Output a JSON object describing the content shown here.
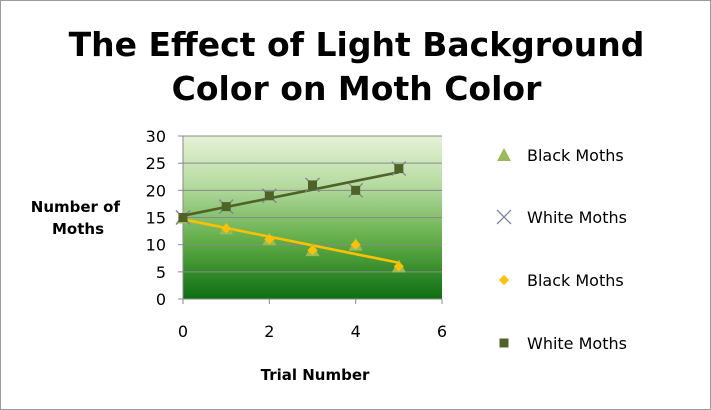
{
  "chart_data": {
    "type": "scatter",
    "title": "The Effect of Light Background Color on Moth Color",
    "title_lines": [
      "The Effect of Light Background",
      "Color on Moth Color"
    ],
    "xlabel": "Trial Number",
    "ylabel": "Number of Moths",
    "ylabel_lines": [
      "Number of",
      "Moths"
    ],
    "xlim": [
      0,
      6
    ],
    "ylim": [
      0,
      30
    ],
    "x_ticks": [
      0,
      2,
      4,
      6
    ],
    "y_ticks": [
      0,
      5,
      10,
      15,
      20,
      25,
      30
    ],
    "grid": "horizontal",
    "legend_position": "right",
    "background": "green gradient, light at top to dark green at bottom",
    "series": [
      {
        "name": "Black Moths",
        "marker": "triangle",
        "color": "#9bbb59",
        "x": [
          0,
          1,
          2,
          3,
          4,
          5
        ],
        "y": [
          15,
          13,
          11,
          9,
          10,
          6
        ]
      },
      {
        "name": "White Moths",
        "marker": "x",
        "color": "#7f7f9f",
        "x": [
          0,
          1,
          2,
          3,
          4,
          5
        ],
        "y": [
          15,
          17,
          19,
          21,
          20,
          24
        ]
      },
      {
        "name": "Black Moths",
        "marker": "diamond",
        "color": "#ffc000",
        "x": [
          0,
          1,
          2,
          3,
          4,
          5
        ],
        "y": [
          15,
          13,
          11,
          9,
          10,
          6
        ],
        "trendline": {
          "type": "linear",
          "color": "#ffc000"
        }
      },
      {
        "name": "White Moths",
        "marker": "square",
        "color": "#4f6228",
        "x": [
          0,
          1,
          2,
          3,
          4,
          5
        ],
        "y": [
          15,
          17,
          19,
          21,
          20,
          24
        ],
        "trendline": {
          "type": "linear",
          "color": "#4f6228"
        }
      }
    ]
  }
}
